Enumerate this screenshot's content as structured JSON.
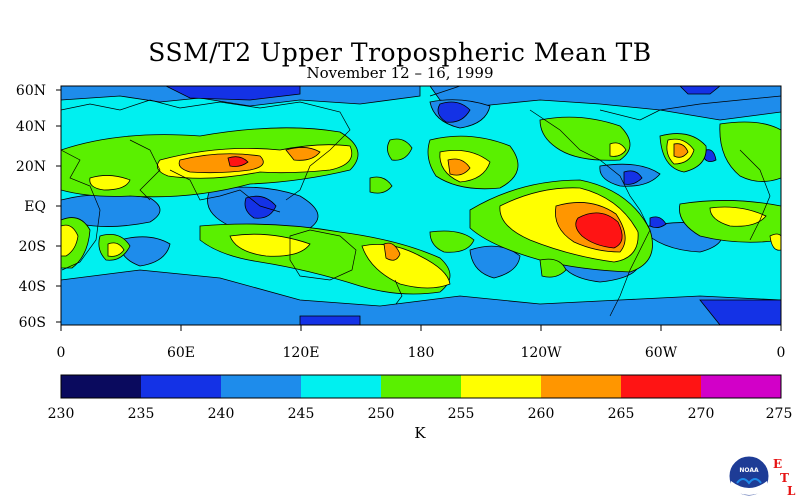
{
  "header": {
    "title": "SSM/T2 Upper Tropospheric Mean TB",
    "subtitle": "November 12 – 16, 1999"
  },
  "map": {
    "lat_labels": [
      "60N",
      "40N",
      "20N",
      "EQ",
      "20S",
      "40S",
      "60S"
    ],
    "lon_labels": [
      "0",
      "60E",
      "120E",
      "180",
      "120W",
      "60W",
      "0"
    ]
  },
  "colorbar": {
    "ticks": [
      "230",
      "235",
      "240",
      "245",
      "250",
      "255",
      "260",
      "265",
      "270",
      "275"
    ],
    "colors": [
      "#0a0a5e",
      "#1432e6",
      "#1e8ceb",
      "#00f0f0",
      "#5af000",
      "#ffff00",
      "#ff9600",
      "#ff1414",
      "#d200c8"
    ],
    "unit": "K"
  },
  "logo": {
    "badge_text": "NOAA",
    "letters": [
      "E",
      "T",
      "L"
    ]
  }
}
